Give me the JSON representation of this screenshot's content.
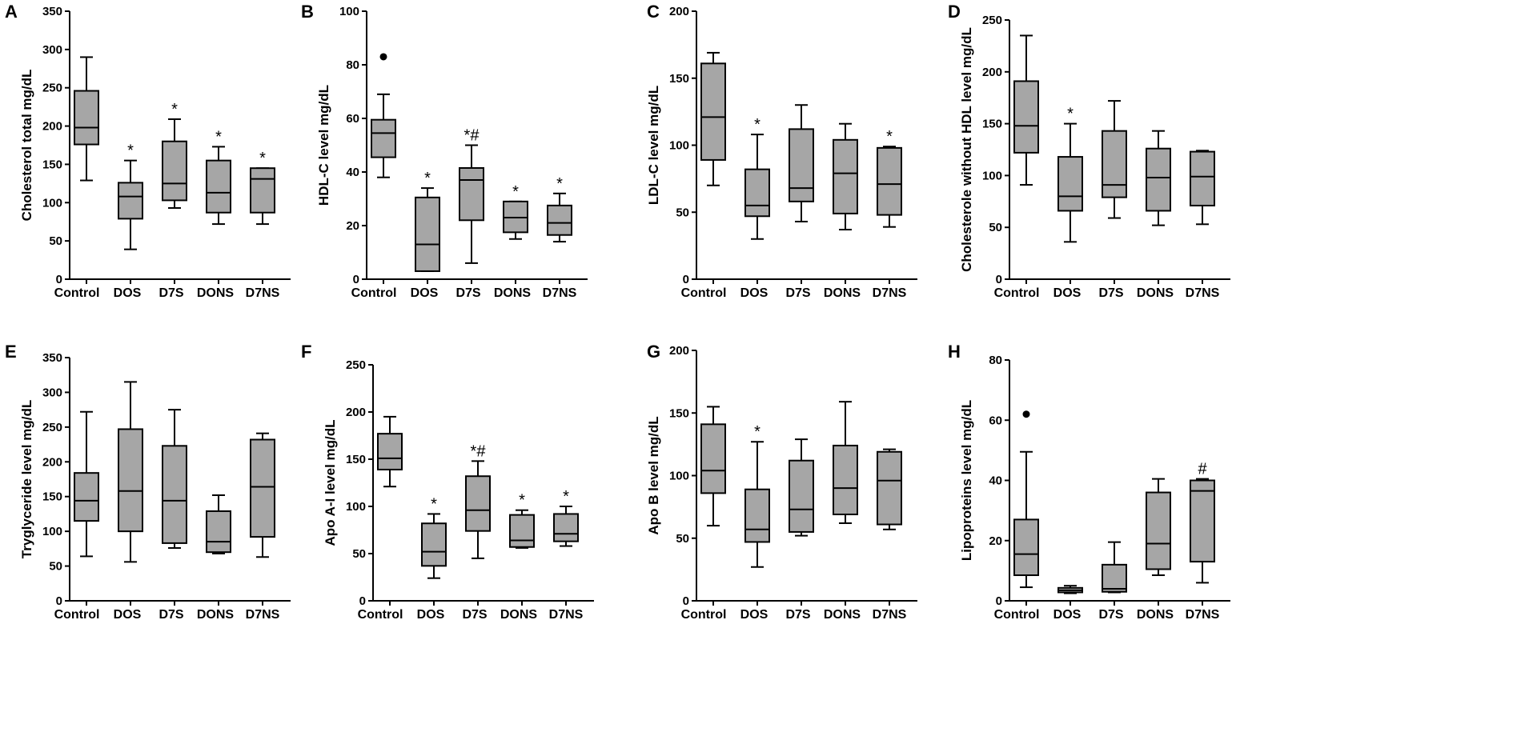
{
  "categories": [
    "Control",
    "DOS",
    "D7S",
    "DONS",
    "D7NS"
  ],
  "chart_data": [
    {
      "type": "boxplot",
      "panel": "A",
      "ylabel": "Cholesterol total mg/dL",
      "ylim": [
        0,
        350
      ],
      "yticks": [
        0,
        50,
        100,
        150,
        200,
        250,
        300,
        350
      ],
      "boxes": [
        {
          "min": 129,
          "q1": 176,
          "median": 198,
          "q3": 246,
          "max": 290,
          "sig": ""
        },
        {
          "min": 39,
          "q1": 79,
          "median": 108,
          "q3": 126,
          "max": 155,
          "sig": "*"
        },
        {
          "min": 93,
          "q1": 103,
          "median": 125,
          "q3": 180,
          "max": 209,
          "sig": "*"
        },
        {
          "min": 72,
          "q1": 87,
          "median": 113,
          "q3": 155,
          "max": 173,
          "sig": "*"
        },
        {
          "min": 72,
          "q1": 87,
          "median": 131,
          "q3": 145,
          "max": 145,
          "sig": "*"
        }
      ]
    },
    {
      "type": "boxplot",
      "panel": "B",
      "ylabel": "HDL-C level mg/dL",
      "ylim": [
        0,
        100
      ],
      "yticks": [
        0,
        20,
        40,
        60,
        80,
        100
      ],
      "boxes": [
        {
          "min": 38,
          "q1": 45.5,
          "median": 54.5,
          "q3": 59.5,
          "max": 69,
          "outliers": [
            83
          ],
          "sig": ""
        },
        {
          "min": 3,
          "q1": 3,
          "median": 13,
          "q3": 30.5,
          "max": 34,
          "sig": "*"
        },
        {
          "min": 6,
          "q1": 22,
          "median": 37,
          "q3": 41.5,
          "max": 50,
          "sig": "*#"
        },
        {
          "min": 15,
          "q1": 17.5,
          "median": 23,
          "q3": 29,
          "max": 29,
          "sig": "*"
        },
        {
          "min": 14,
          "q1": 16.5,
          "median": 21,
          "q3": 27.5,
          "max": 32,
          "sig": "*"
        }
      ]
    },
    {
      "type": "boxplot",
      "panel": "C",
      "ylabel": "LDL-C level mg/dL",
      "ylim": [
        0,
        200
      ],
      "yticks": [
        0,
        50,
        100,
        150,
        200
      ],
      "boxes": [
        {
          "min": 70,
          "q1": 89,
          "median": 121,
          "q3": 161,
          "max": 169,
          "sig": ""
        },
        {
          "min": 30,
          "q1": 47,
          "median": 55,
          "q3": 82,
          "max": 108,
          "sig": "*"
        },
        {
          "min": 43,
          "q1": 58,
          "median": 68,
          "q3": 112,
          "max": 130,
          "sig": ""
        },
        {
          "min": 37,
          "q1": 49,
          "median": 79,
          "q3": 104,
          "max": 116,
          "sig": ""
        },
        {
          "min": 39,
          "q1": 48,
          "median": 71,
          "q3": 98,
          "max": 99,
          "sig": "*"
        }
      ]
    },
    {
      "type": "boxplot",
      "panel": "D",
      "ylabel": "Cholesterole without HDL level mg/dL",
      "ylim": [
        0,
        250
      ],
      "yticks": [
        0,
        50,
        100,
        150,
        200,
        250
      ],
      "boxes": [
        {
          "min": 91,
          "q1": 122,
          "median": 148,
          "q3": 191,
          "max": 235,
          "sig": ""
        },
        {
          "min": 36,
          "q1": 66,
          "median": 80,
          "q3": 118,
          "max": 150,
          "sig": "*"
        },
        {
          "min": 59,
          "q1": 79,
          "median": 91,
          "q3": 143,
          "max": 172,
          "sig": ""
        },
        {
          "min": 52,
          "q1": 66,
          "median": 98,
          "q3": 126,
          "max": 143,
          "sig": ""
        },
        {
          "min": 53,
          "q1": 71,
          "median": 99,
          "q3": 123,
          "max": 124,
          "sig": ""
        }
      ]
    },
    {
      "type": "boxplot",
      "panel": "E",
      "ylabel": "Tryglyceride level mg/dL",
      "ylim": [
        0,
        350
      ],
      "yticks": [
        0,
        50,
        100,
        150,
        200,
        250,
        300,
        350
      ],
      "boxes": [
        {
          "min": 64,
          "q1": 115,
          "median": 144,
          "q3": 184,
          "max": 272,
          "sig": ""
        },
        {
          "min": 56,
          "q1": 100,
          "median": 158,
          "q3": 247,
          "max": 315,
          "sig": ""
        },
        {
          "min": 76,
          "q1": 83,
          "median": 144,
          "q3": 223,
          "max": 275,
          "sig": ""
        },
        {
          "min": 68,
          "q1": 70,
          "median": 85,
          "q3": 129,
          "max": 152,
          "sig": ""
        },
        {
          "min": 63,
          "q1": 92,
          "median": 164,
          "q3": 232,
          "max": 241,
          "sig": ""
        }
      ]
    },
    {
      "type": "boxplot",
      "panel": "F",
      "ylabel": "Apo A-I level mg/dL",
      "ylim": [
        0,
        250
      ],
      "yticks": [
        0,
        50,
        100,
        150,
        200,
        250
      ],
      "boxes": [
        {
          "min": 121,
          "q1": 139,
          "median": 151,
          "q3": 177,
          "max": 195,
          "sig": ""
        },
        {
          "min": 24,
          "q1": 37,
          "median": 52,
          "q3": 82,
          "max": 92,
          "sig": "*"
        },
        {
          "min": 45,
          "q1": 74,
          "median": 96,
          "q3": 132,
          "max": 148,
          "sig": "*#"
        },
        {
          "min": 56,
          "q1": 57,
          "median": 64,
          "q3": 91,
          "max": 96,
          "sig": "*"
        },
        {
          "min": 58,
          "q1": 63,
          "median": 71,
          "q3": 92,
          "max": 100,
          "sig": "*"
        }
      ]
    },
    {
      "type": "boxplot",
      "panel": "G",
      "ylabel": "Apo B level mg/dL",
      "ylim": [
        0,
        200
      ],
      "yticks": [
        0,
        50,
        100,
        150,
        200
      ],
      "boxes": [
        {
          "min": 60,
          "q1": 86,
          "median": 104,
          "q3": 141,
          "max": 155,
          "sig": ""
        },
        {
          "min": 27,
          "q1": 47,
          "median": 57,
          "q3": 89,
          "max": 127,
          "sig": "*"
        },
        {
          "min": 52,
          "q1": 55,
          "median": 73,
          "q3": 112,
          "max": 129,
          "sig": ""
        },
        {
          "min": 62,
          "q1": 69,
          "median": 90,
          "q3": 124,
          "max": 159,
          "sig": ""
        },
        {
          "min": 57,
          "q1": 61,
          "median": 96,
          "q3": 119,
          "max": 121,
          "sig": ""
        }
      ]
    },
    {
      "type": "boxplot",
      "panel": "H",
      "ylabel": "Lipoproteins level mg/dL",
      "ylim": [
        0,
        80
      ],
      "yticks": [
        0,
        20,
        40,
        60,
        80
      ],
      "boxes": [
        {
          "min": 4.5,
          "q1": 8.5,
          "median": 15.5,
          "q3": 27,
          "max": 49.5,
          "outliers": [
            62
          ],
          "sig": ""
        },
        {
          "min": 2.5,
          "q1": 2.8,
          "median": 3.5,
          "q3": 4.3,
          "max": 5,
          "sig": ""
        },
        {
          "min": 2.8,
          "q1": 3,
          "median": 4,
          "q3": 12,
          "max": 19.5,
          "sig": ""
        },
        {
          "min": 8.5,
          "q1": 10.5,
          "median": 19,
          "q3": 36,
          "max": 40.5,
          "sig": ""
        },
        {
          "min": 6,
          "q1": 13,
          "median": 36.5,
          "q3": 40,
          "max": 40.5,
          "sig": "#"
        }
      ]
    }
  ]
}
